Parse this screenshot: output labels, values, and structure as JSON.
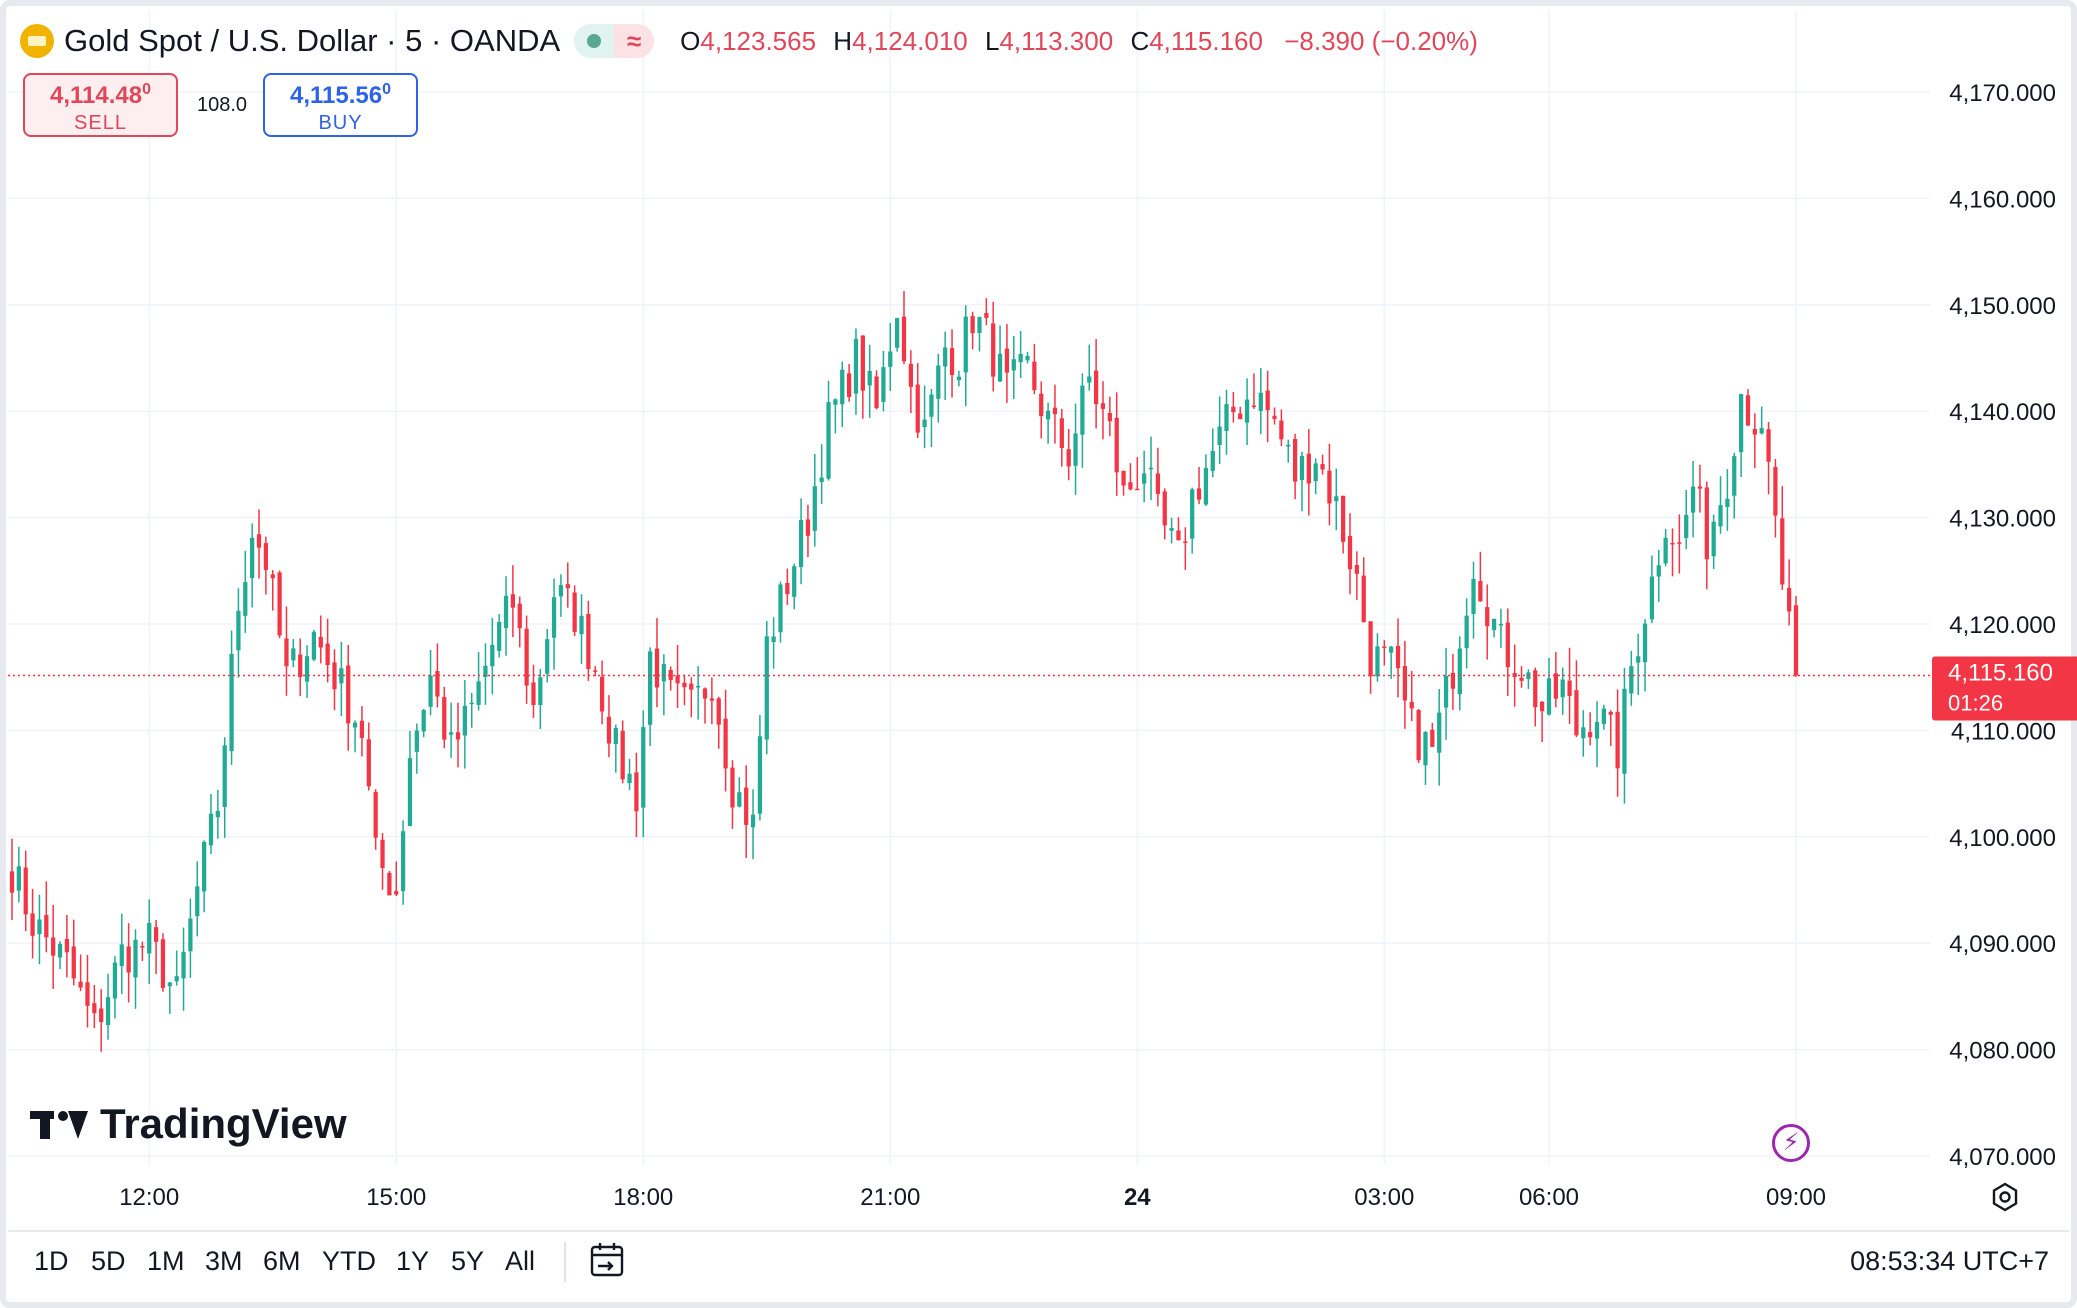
{
  "header": {
    "symbol": "Gold Spot / U.S. Dollar · 5 · OANDA",
    "icon": "gold-bar-icon",
    "o_label": "O",
    "o_value": "4,123.565",
    "h_label": "H",
    "h_value": "4,124.010",
    "l_label": "L",
    "l_value": "4,113.300",
    "c_label": "C",
    "c_value": "4,115.160",
    "change": "−8.390 (−0.20%)",
    "change_color": "#e0475a"
  },
  "trade": {
    "sell_price": "4,114.48",
    "sell_sup": "0",
    "sell_label": "SELL",
    "buy_price": "4,115.56",
    "buy_sup": "0",
    "buy_label": "BUY",
    "spread": "108.0"
  },
  "brand": "TradingView",
  "timeframes": [
    "1D",
    "5D",
    "1M",
    "3M",
    "6M",
    "YTD",
    "1Y",
    "5Y",
    "All"
  ],
  "clock": "08:53:34 UTC+7",
  "chart_data": {
    "type": "candlestick",
    "y_ticks": [
      "4,170.000",
      "4,160.000",
      "4,150.000",
      "4,140.000",
      "4,130.000",
      "4,120.000",
      "4,110.000",
      "4,100.000",
      "4,090.000",
      "4,080.000",
      "4,070.000"
    ],
    "y_tick_values": [
      4170,
      4160,
      4150,
      4140,
      4130,
      4120,
      4110,
      4100,
      4090,
      4080,
      4070
    ],
    "ylim": [
      4068,
      4175
    ],
    "x_ticks": [
      {
        "label": "12:00",
        "index": 20,
        "bold": false
      },
      {
        "label": "15:00",
        "index": 56,
        "bold": false
      },
      {
        "label": "18:00",
        "index": 92,
        "bold": false
      },
      {
        "label": "21:00",
        "index": 128,
        "bold": false
      },
      {
        "label": "24",
        "index": 164,
        "bold": true
      },
      {
        "label": "03:00",
        "index": 200,
        "bold": false
      },
      {
        "label": "06:00",
        "index": 224,
        "bold": false
      },
      {
        "label": "09:00",
        "index": 260,
        "bold": false
      }
    ],
    "last_price": "4,115.160",
    "last_value": 4115.16,
    "countdown": "01:26",
    "up_color": "#22ab94",
    "down_color": "#f23645",
    "anchors": [
      [
        0,
        4097
      ],
      [
        3,
        4092
      ],
      [
        8,
        4088
      ],
      [
        12,
        4082
      ],
      [
        16,
        4089
      ],
      [
        20,
        4090
      ],
      [
        24,
        4085
      ],
      [
        27,
        4095
      ],
      [
        30,
        4103
      ],
      [
        33,
        4122
      ],
      [
        35,
        4129
      ],
      [
        37,
        4126
      ],
      [
        40,
        4115
      ],
      [
        44,
        4119
      ],
      [
        48,
        4114
      ],
      [
        51,
        4110
      ],
      [
        53,
        4098
      ],
      [
        56,
        4095
      ],
      [
        58,
        4108
      ],
      [
        61,
        4115
      ],
      [
        64,
        4108
      ],
      [
        67,
        4112
      ],
      [
        70,
        4118
      ],
      [
        73,
        4122
      ],
      [
        76,
        4112
      ],
      [
        79,
        4123
      ],
      [
        82,
        4121
      ],
      [
        85,
        4116
      ],
      [
        88,
        4108
      ],
      [
        91,
        4104
      ],
      [
        93,
        4117
      ],
      [
        96,
        4113
      ],
      [
        99,
        4112
      ],
      [
        102,
        4115
      ],
      [
        105,
        4105
      ],
      [
        108,
        4101
      ],
      [
        110,
        4118
      ],
      [
        113,
        4124
      ],
      [
        116,
        4130
      ],
      [
        119,
        4139
      ],
      [
        121,
        4142
      ],
      [
        123,
        4145
      ],
      [
        126,
        4140
      ],
      [
        129,
        4150
      ],
      [
        131,
        4142
      ],
      [
        133,
        4138
      ],
      [
        136,
        4146
      ],
      [
        138,
        4145
      ],
      [
        140,
        4149
      ],
      [
        142,
        4147
      ],
      [
        145,
        4142
      ],
      [
        148,
        4144
      ],
      [
        151,
        4139
      ],
      [
        154,
        4136
      ],
      [
        157,
        4143
      ],
      [
        160,
        4138
      ],
      [
        162,
        4132
      ],
      [
        165,
        4135
      ],
      [
        167,
        4130
      ],
      [
        170,
        4126
      ],
      [
        172,
        4132
      ],
      [
        175,
        4136
      ],
      [
        178,
        4140
      ],
      [
        181,
        4142
      ],
      [
        184,
        4139
      ],
      [
        187,
        4134
      ],
      [
        190,
        4136
      ],
      [
        193,
        4131
      ],
      [
        196,
        4124
      ],
      [
        198,
        4117
      ],
      [
        201,
        4116
      ],
      [
        204,
        4110
      ],
      [
        207,
        4108
      ],
      [
        210,
        4116
      ],
      [
        213,
        4126
      ],
      [
        215,
        4122
      ],
      [
        217,
        4118
      ],
      [
        220,
        4116
      ],
      [
        223,
        4112
      ],
      [
        226,
        4114
      ],
      [
        228,
        4110
      ],
      [
        231,
        4112
      ],
      [
        234,
        4108
      ],
      [
        236,
        4116
      ],
      [
        239,
        4124
      ],
      [
        241,
        4130
      ],
      [
        243,
        4127
      ],
      [
        245,
        4133
      ],
      [
        247,
        4128
      ],
      [
        250,
        4134
      ],
      [
        252,
        4142
      ],
      [
        254,
        4139
      ],
      [
        256,
        4134
      ],
      [
        258,
        4124
      ],
      [
        260,
        4115.16
      ]
    ],
    "n": 261
  }
}
